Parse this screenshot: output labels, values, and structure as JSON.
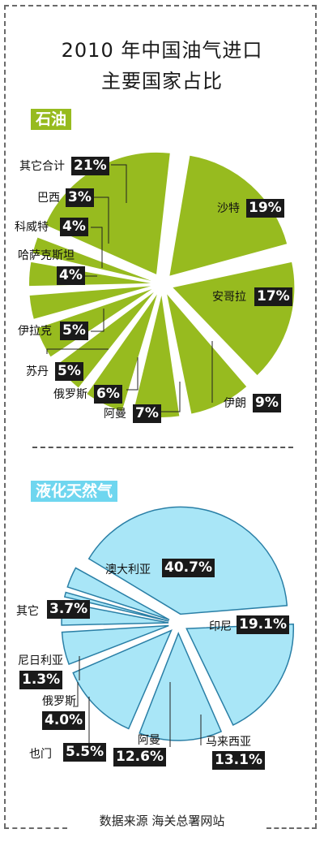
{
  "title_line1": "2010 年中国油气进口",
  "title_line2": "主要国家占比",
  "source": "数据来源 海关总署网站",
  "colors": {
    "oil": "#97bb1f",
    "lng": "#a9e6f7",
    "lng_stroke": "#2a7fa6",
    "label_bg": "#1a1a1a"
  },
  "chart_data": [
    {
      "type": "pie",
      "title": "石油",
      "slices": [
        {
          "name": "沙特",
          "value": 19,
          "label": "19%"
        },
        {
          "name": "安哥拉",
          "value": 17,
          "label": "17%"
        },
        {
          "name": "伊朗",
          "value": 9,
          "label": "9%"
        },
        {
          "name": "阿曼",
          "value": 7,
          "label": "7%"
        },
        {
          "name": "俄罗斯",
          "value": 6,
          "label": "6%"
        },
        {
          "name": "苏丹",
          "value": 5,
          "label": "5%"
        },
        {
          "name": "伊拉克",
          "value": 5,
          "label": "5%"
        },
        {
          "name": "哈萨克斯坦",
          "value": 4,
          "label": "4%"
        },
        {
          "name": "科威特",
          "value": 4,
          "label": "4%"
        },
        {
          "name": "巴西",
          "value": 3,
          "label": "3%"
        },
        {
          "name": "其它合计",
          "value": 21,
          "label": "21%"
        }
      ]
    },
    {
      "type": "pie",
      "title": "液化天然气",
      "slices": [
        {
          "name": "澳大利亚",
          "value": 40.7,
          "label": "40.7%"
        },
        {
          "name": "印尼",
          "value": 19.1,
          "label": "19.1%"
        },
        {
          "name": "马来西亚",
          "value": 13.1,
          "label": "13.1%"
        },
        {
          "name": "阿曼",
          "value": 12.6,
          "label": "12.6%"
        },
        {
          "name": "也门",
          "value": 5.5,
          "label": "5.5%"
        },
        {
          "name": "俄罗斯",
          "value": 4.0,
          "label": "4.0%"
        },
        {
          "name": "尼日利亚",
          "value": 1.3,
          "label": "1.3%"
        },
        {
          "name": "其它",
          "value": 3.7,
          "label": "3.7%"
        }
      ]
    }
  ]
}
